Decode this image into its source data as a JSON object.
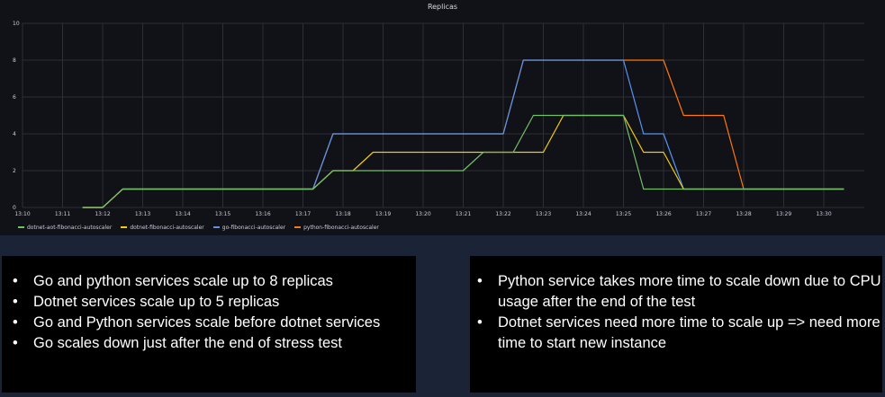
{
  "panel": {
    "title": "Replicas"
  },
  "chart_data": {
    "type": "line",
    "title": "Replicas",
    "xlabel": "",
    "ylabel": "",
    "ylim": [
      0,
      10
    ],
    "yticks": [
      "0",
      "2",
      "4",
      "6",
      "8",
      "10"
    ],
    "xticks": [
      "13:10",
      "13:11",
      "13:12",
      "13:13",
      "13:14",
      "13:15",
      "13:16",
      "13:17",
      "13:18",
      "13:19",
      "13:20",
      "13:21",
      "13:22",
      "13:23",
      "13:24",
      "13:25",
      "13:26",
      "13:27",
      "13:28",
      "13:29",
      "13:30"
    ],
    "x_unit": "minutes after 13:10",
    "grid": true,
    "legend_position": "bottom-left",
    "series": [
      {
        "name": "dotnet-aot-fibonacci-autoscaler",
        "color": "#73bf69",
        "points": [
          [
            1.5,
            0
          ],
          [
            2,
            0
          ],
          [
            2.5,
            1
          ],
          [
            7.25,
            1
          ],
          [
            7.75,
            2
          ],
          [
            11,
            2
          ],
          [
            11.5,
            3
          ],
          [
            12.25,
            3
          ],
          [
            12.75,
            5
          ],
          [
            15,
            5
          ],
          [
            15.5,
            1
          ],
          [
            20.5,
            1
          ]
        ]
      },
      {
        "name": "dotnet-fibonacci-autoscaler",
        "color": "#f2cc0c",
        "points": [
          [
            1.5,
            0
          ],
          [
            2,
            0
          ],
          [
            2.5,
            1
          ],
          [
            7.25,
            1
          ],
          [
            7.75,
            2
          ],
          [
            8.25,
            2
          ],
          [
            8.75,
            3
          ],
          [
            13,
            3
          ],
          [
            13.5,
            5
          ],
          [
            15,
            5
          ],
          [
            15.5,
            3
          ],
          [
            16,
            3
          ],
          [
            16.5,
            1
          ],
          [
            20.5,
            1
          ]
        ]
      },
      {
        "name": "go-fibonacci-autoscaler",
        "color": "#5794f2",
        "points": [
          [
            1.5,
            0
          ],
          [
            2,
            0
          ],
          [
            2.5,
            1
          ],
          [
            7.25,
            1
          ],
          [
            7.75,
            4
          ],
          [
            12,
            4
          ],
          [
            12.5,
            8
          ],
          [
            15,
            8
          ],
          [
            15.5,
            4
          ],
          [
            16,
            4
          ],
          [
            16.5,
            1
          ],
          [
            20.5,
            1
          ]
        ]
      },
      {
        "name": "python-fibonacci-autoscaler",
        "color": "#ff780a",
        "points": [
          [
            1.5,
            0
          ],
          [
            2,
            0
          ],
          [
            2.5,
            1
          ],
          [
            7.25,
            1
          ],
          [
            7.75,
            4
          ],
          [
            12,
            4
          ],
          [
            12.5,
            8
          ],
          [
            16,
            8
          ],
          [
            16.5,
            5
          ],
          [
            17.5,
            5
          ],
          [
            18,
            1
          ],
          [
            20.5,
            1
          ]
        ]
      }
    ]
  },
  "notes": {
    "left": [
      "Go and python services scale  up to 8 replicas",
      "Dotnet services scale up to 5 replicas",
      "Go and Python services scale before dotnet services",
      "Go scales down just after the end of stress test"
    ],
    "right": [
      "Python  service takes more time to scale down due to CPU usage after the end of the test",
      "Dotnet services need more time to scale up => need more time to start new instance"
    ]
  }
}
